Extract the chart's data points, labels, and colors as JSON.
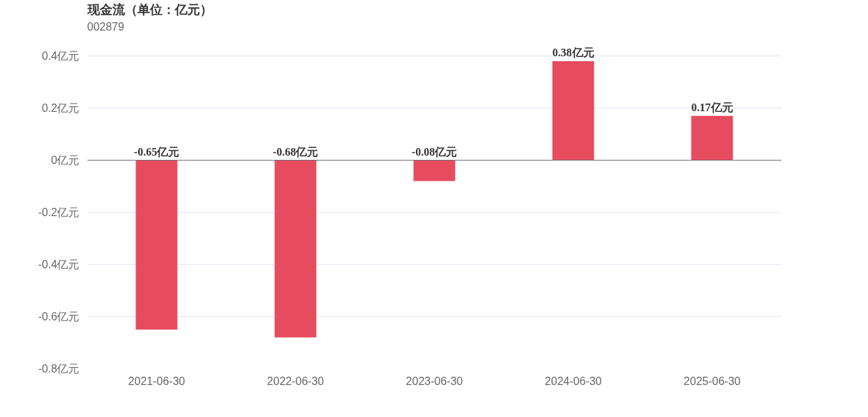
{
  "chart_data": {
    "type": "bar",
    "title": "现金流（单位：亿元）",
    "subtitle": "002879",
    "categories": [
      "2021-06-30",
      "2022-06-30",
      "2023-06-30",
      "2024-06-30",
      "2025-06-30"
    ],
    "values": [
      -0.65,
      -0.68,
      -0.08,
      0.38,
      0.17
    ],
    "value_labels": [
      "-0.65亿元",
      "-0.68亿元",
      "-0.08亿元",
      "0.38亿元",
      "0.17亿元"
    ],
    "color": "#e64b5e",
    "ylim": [
      -0.8,
      0.4
    ],
    "yticks": [
      {
        "value": -0.8,
        "label": "-0.8亿元"
      },
      {
        "value": -0.6,
        "label": "-0.6亿元"
      },
      {
        "value": -0.4,
        "label": "-0.4亿元"
      },
      {
        "value": -0.2,
        "label": "-0.2亿元"
      },
      {
        "value": 0,
        "label": "0亿元"
      },
      {
        "value": 0.2,
        "label": "0.2亿元"
      },
      {
        "value": 0.4,
        "label": "0.4亿元"
      }
    ],
    "grid": "y"
  }
}
